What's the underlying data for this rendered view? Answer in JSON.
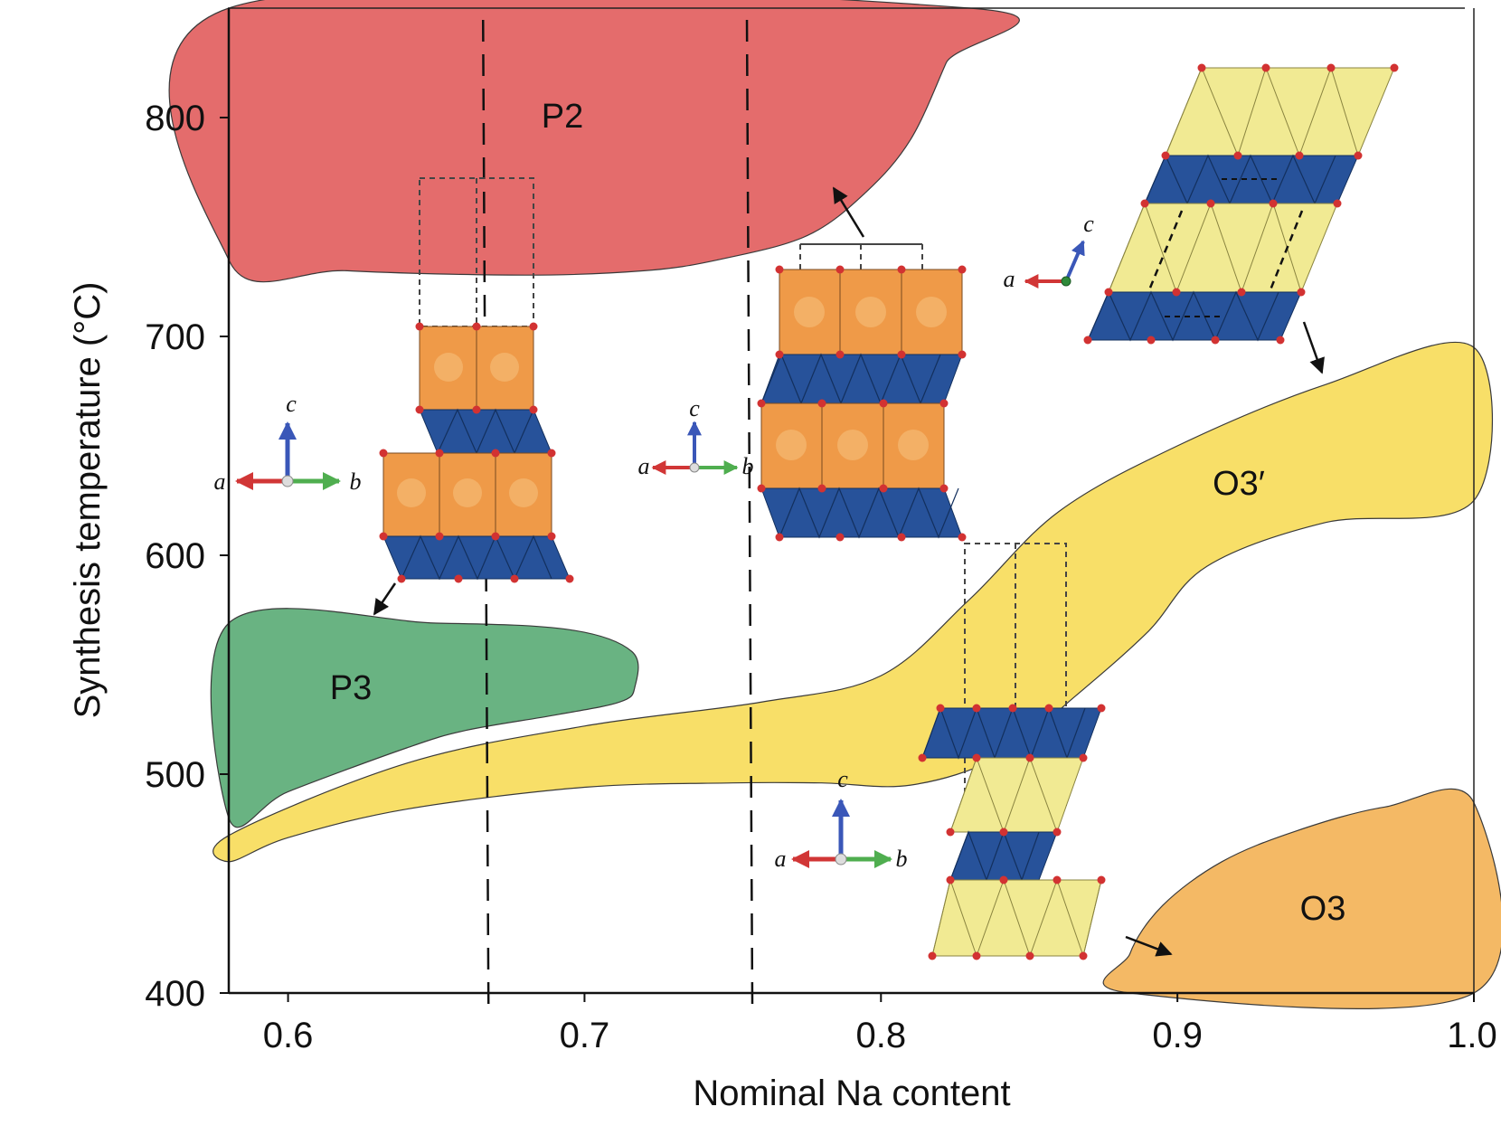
{
  "chart_data": {
    "type": "area",
    "title": "",
    "xlabel": "Nominal Na content",
    "ylabel": "Synthesis temperature (°C)",
    "xlim": [
      0.58,
      1.0
    ],
    "ylim": [
      400,
      850
    ],
    "x_ticks": [
      0.6,
      0.7,
      0.8,
      0.9,
      1.0
    ],
    "x_tick_labels": [
      "0.6",
      "0.7",
      "0.8",
      "0.9",
      "1.0"
    ],
    "y_ticks": [
      400,
      500,
      600,
      700,
      800
    ],
    "y_tick_labels": [
      "400",
      "500",
      "600",
      "700",
      "800"
    ],
    "dashed_vertical_lines": [
      0.667,
      0.756
    ],
    "regions": [
      {
        "name": "P2",
        "label": "P2",
        "color": "#e46c6c",
        "label_at": [
          0.675,
          800
        ],
        "boundary": [
          [
            0.58,
            850
          ],
          [
            0.83,
            850
          ],
          [
            0.822,
            825
          ],
          [
            0.81,
            790
          ],
          [
            0.795,
            766
          ],
          [
            0.775,
            746
          ],
          [
            0.745,
            735
          ],
          [
            0.72,
            730
          ],
          [
            0.68,
            728
          ],
          [
            0.62,
            730
          ],
          [
            0.58,
            735
          ]
        ]
      },
      {
        "name": "P3",
        "label": "P3",
        "color": "#69b382",
        "label_at": [
          0.602,
          540
        ],
        "boundary": [
          [
            0.58,
            569
          ],
          [
            0.65,
            569
          ],
          [
            0.695,
            566
          ],
          [
            0.716,
            556
          ],
          [
            0.717,
            540
          ],
          [
            0.712,
            533
          ],
          [
            0.69,
            527
          ],
          [
            0.66,
            520
          ],
          [
            0.64,
            512
          ],
          [
            0.6,
            492
          ],
          [
            0.58,
            480
          ]
        ]
      },
      {
        "name": "O3-prime",
        "label": "O3′",
        "color": "#f8df68",
        "label_at": [
          0.945,
          630
        ],
        "boundary": [
          [
            0.58,
            472
          ],
          [
            0.64,
            505
          ],
          [
            0.7,
            522
          ],
          [
            0.76,
            533
          ],
          [
            0.8,
            545
          ],
          [
            0.83,
            580
          ],
          [
            0.86,
            620
          ],
          [
            0.9,
            650
          ],
          [
            0.95,
            678
          ],
          [
            1.0,
            695
          ],
          [
            1.0,
            625
          ],
          [
            0.95,
            615
          ],
          [
            0.91,
            595
          ],
          [
            0.89,
            565
          ],
          [
            0.865,
            535
          ],
          [
            0.84,
            508
          ],
          [
            0.81,
            495
          ],
          [
            0.78,
            496
          ],
          [
            0.75,
            496
          ],
          [
            0.7,
            494
          ],
          [
            0.64,
            484
          ],
          [
            0.6,
            471
          ],
          [
            0.58,
            460
          ]
        ]
      },
      {
        "name": "O3",
        "label": "O3",
        "color": "#f4b965",
        "label_at": [
          0.95,
          440
        ],
        "boundary": [
          [
            0.884,
            400
          ],
          [
            1.0,
            400
          ],
          [
            1.0,
            487
          ],
          [
            0.97,
            485
          ],
          [
            0.94,
            474
          ],
          [
            0.915,
            460
          ],
          [
            0.895,
            440
          ],
          [
            0.884,
            418
          ]
        ]
      }
    ]
  },
  "insets": [
    {
      "name": "p2-structure-inset",
      "axis_labels": {
        "up": "c",
        "left": "a",
        "right": "b"
      }
    },
    {
      "name": "p3-structure-inset",
      "axis_labels": {
        "up": "c",
        "left": "a",
        "right": "b"
      }
    },
    {
      "name": "o3-structure-inset",
      "axis_labels": {
        "up": "c",
        "left": "a",
        "right": "b"
      }
    },
    {
      "name": "o3-prime-structure-inset",
      "axis_labels": {
        "up": "c",
        "left": "a"
      }
    }
  ],
  "colors": {
    "octahedra_blue": "#27529a",
    "prism_orange": "#ef9a48",
    "o_layer_yellow": "#f1ea93",
    "atom_red": "#d23232",
    "axis_red": "#d13636",
    "axis_green": "#4fae4f",
    "axis_blue": "#3a57b8"
  }
}
